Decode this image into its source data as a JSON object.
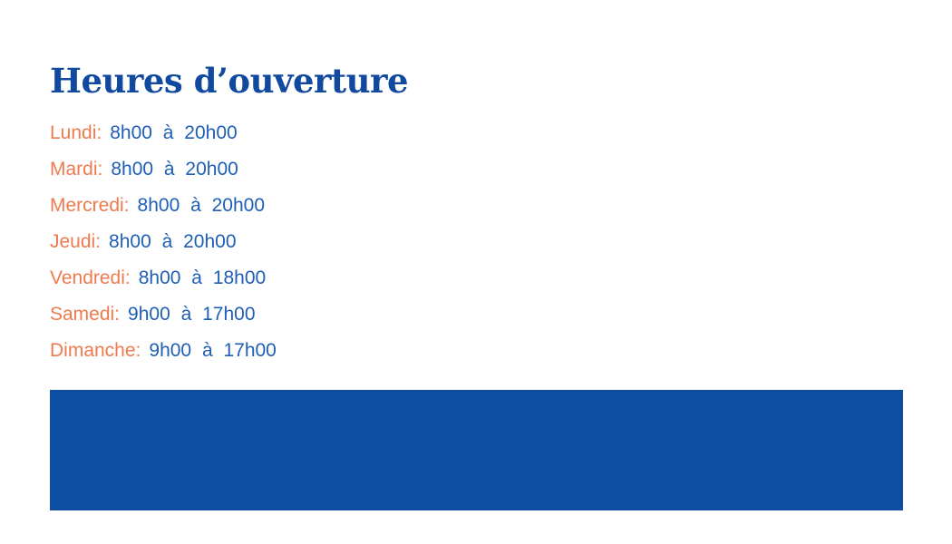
{
  "header": {
    "title": "Heures d’ouverture"
  },
  "hours": {
    "rows": [
      {
        "day": "Lundi:",
        "time": "8h00 à 20h00"
      },
      {
        "day": "Mardi:",
        "time": "8h00 à 20h00"
      },
      {
        "day": "Mercredi:",
        "time": "8h00 à 20h00"
      },
      {
        "day": "Jeudi:",
        "time": "8h00 à 20h00"
      },
      {
        "day": "Vendredi:",
        "time": "8h00 à 18h00"
      },
      {
        "day": "Samedi:",
        "time": "9h00 à 17h00"
      },
      {
        "day": "Dimanche:",
        "time": "9h00 à 17h00"
      }
    ]
  },
  "colors": {
    "title_blue": "#11499E",
    "time_blue": "#1F5EB7",
    "day_orange": "#EF7A4D",
    "banner_blue": "#0D4EA2",
    "background": "#FFFFFF"
  }
}
